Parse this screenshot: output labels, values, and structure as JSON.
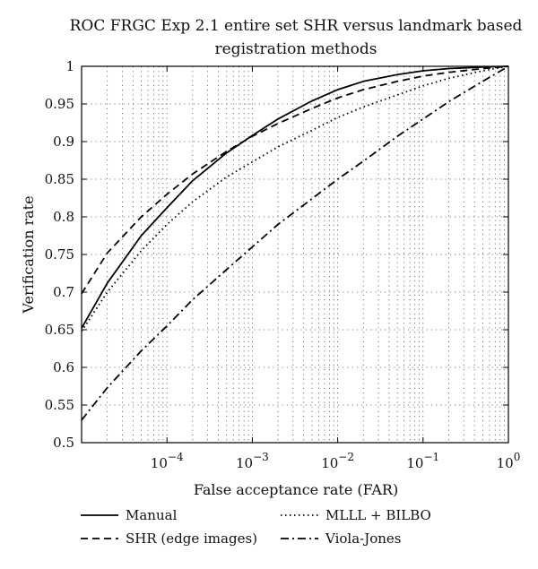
{
  "chart_data": {
    "type": "line",
    "title_lines": [
      "ROC FRGC Exp 2.1 entire set SHR versus landmark based",
      "registration methods"
    ],
    "xlabel": "False acceptance rate (FAR)",
    "ylabel": "Verification rate",
    "x_scale": "log",
    "xlim": [
      1e-05,
      1
    ],
    "ylim": [
      0.5,
      1
    ],
    "grid": true,
    "legend_position": "bottom",
    "x_ticks": [
      {
        "value": 0.0001,
        "base": "10",
        "exp": "−4"
      },
      {
        "value": 0.001,
        "base": "10",
        "exp": "−3"
      },
      {
        "value": 0.01,
        "base": "10",
        "exp": "−2"
      },
      {
        "value": 0.1,
        "base": "10",
        "exp": "−1"
      },
      {
        "value": 1,
        "base": "10",
        "exp": "0"
      }
    ],
    "y_ticks": [
      {
        "value": 0.5,
        "label": "0.5"
      },
      {
        "value": 0.55,
        "label": "0.55"
      },
      {
        "value": 0.6,
        "label": "0.6"
      },
      {
        "value": 0.65,
        "label": "0.65"
      },
      {
        "value": 0.7,
        "label": "0.7"
      },
      {
        "value": 0.75,
        "label": "0.75"
      },
      {
        "value": 0.8,
        "label": "0.8"
      },
      {
        "value": 0.85,
        "label": "0.85"
      },
      {
        "value": 0.9,
        "label": "0.9"
      },
      {
        "value": 0.95,
        "label": "0.95"
      },
      {
        "value": 1,
        "label": "1"
      }
    ],
    "series": [
      {
        "name": "Manual",
        "dash": "solid",
        "color": "#000000",
        "x": [
          1e-05,
          2e-05,
          5e-05,
          0.0001,
          0.0002,
          0.0005,
          0.001,
          0.002,
          0.005,
          0.01,
          0.02,
          0.05,
          0.1,
          0.2,
          0.5,
          1
        ],
        "y": [
          0.652,
          0.712,
          0.775,
          0.812,
          0.848,
          0.885,
          0.908,
          0.93,
          0.954,
          0.969,
          0.98,
          0.989,
          0.994,
          0.997,
          0.999,
          1.0
        ]
      },
      {
        "name": "SHR (edge images)",
        "dash": "dashed",
        "color": "#000000",
        "x": [
          1e-05,
          2e-05,
          5e-05,
          0.0001,
          0.0002,
          0.0005,
          0.001,
          0.002,
          0.005,
          0.01,
          0.02,
          0.05,
          0.1,
          0.2,
          0.5,
          1
        ],
        "y": [
          0.698,
          0.752,
          0.8,
          0.83,
          0.857,
          0.887,
          0.907,
          0.924,
          0.944,
          0.958,
          0.969,
          0.98,
          0.987,
          0.992,
          0.997,
          1.0
        ]
      },
      {
        "name": "MLLL + BILBO",
        "dash": "dotted",
        "color": "#000000",
        "x": [
          1e-05,
          2e-05,
          5e-05,
          0.0001,
          0.0002,
          0.0005,
          0.001,
          0.002,
          0.005,
          0.01,
          0.02,
          0.05,
          0.1,
          0.2,
          0.5,
          1
        ],
        "y": [
          0.648,
          0.7,
          0.755,
          0.79,
          0.82,
          0.853,
          0.873,
          0.893,
          0.915,
          0.932,
          0.946,
          0.962,
          0.974,
          0.984,
          0.994,
          1.0
        ]
      },
      {
        "name": "Viola-Jones",
        "dash": "dashdot",
        "color": "#000000",
        "x": [
          1e-05,
          2e-05,
          5e-05,
          0.0001,
          0.0002,
          0.0005,
          0.001,
          0.002,
          0.005,
          0.01,
          0.02,
          0.05,
          0.1,
          0.2,
          0.5,
          1
        ],
        "y": [
          0.53,
          0.573,
          0.622,
          0.655,
          0.69,
          0.73,
          0.76,
          0.79,
          0.824,
          0.85,
          0.874,
          0.907,
          0.93,
          0.953,
          0.98,
          1.0
        ]
      }
    ]
  }
}
